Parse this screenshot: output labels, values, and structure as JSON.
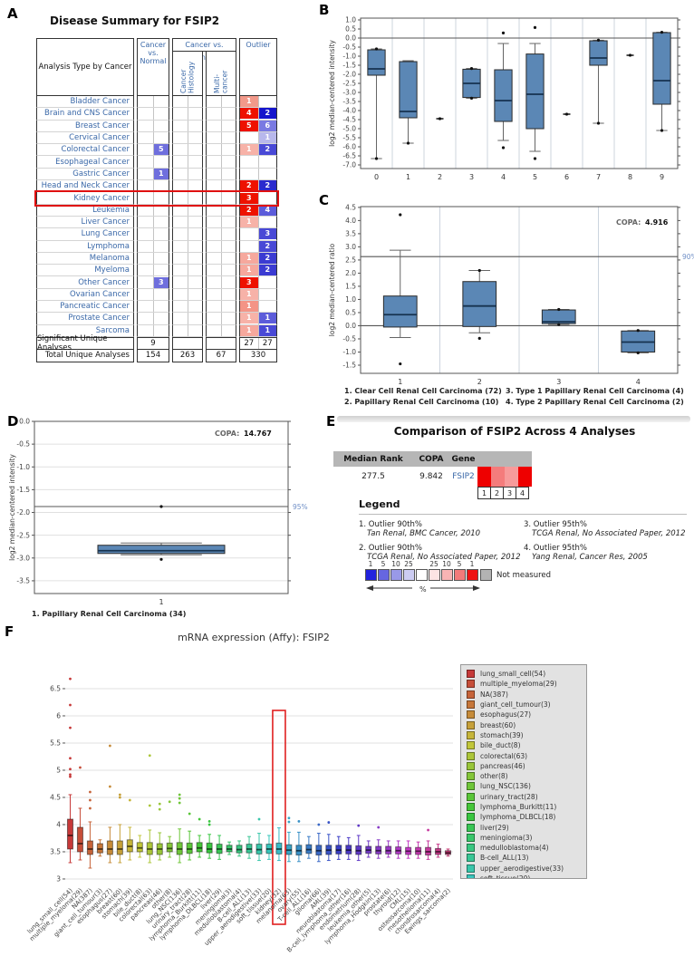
{
  "accent": {
    "box_blue": "#5b87b5",
    "median_navy": "#16324f",
    "ref_label_blue": "#6f8fc6",
    "highlight_red": "#e01010",
    "link_blue": "#3a68a8"
  },
  "panel_a": {
    "label": "A",
    "title": "Disease Summary for FSIP2",
    "headers": {
      "analysis": "Analysis Type by Cancer",
      "cvn": "Cancer vs. Normal",
      "cvc": "Cancer vs. Cancer",
      "hist": "Cancer Histology",
      "multi": "Multi-cancer",
      "outlier": "Outlier"
    },
    "rows": [
      {
        "name": "Bladder Cancer",
        "out1": {
          "v": "1",
          "c": "#f2998a"
        }
      },
      {
        "name": "Brain and CNS Cancer",
        "out1": {
          "v": "4",
          "c": "#ee1100"
        },
        "out2": {
          "v": "2",
          "c": "#1515cc"
        }
      },
      {
        "name": "Breast Cancer",
        "out1": {
          "v": "5",
          "c": "#ee1100"
        },
        "out2": {
          "v": "6",
          "c": "#7a7ae2"
        }
      },
      {
        "name": "Cervical Cancer",
        "out2": {
          "v": "1",
          "c": "#b8b8ec"
        }
      },
      {
        "name": "Colorectal Cancer",
        "cvn": {
          "v": "5",
          "c": "#6f6fdd"
        },
        "out1": {
          "v": "1",
          "c": "#f7b2a8"
        },
        "out2": {
          "v": "2",
          "c": "#4949d6"
        }
      },
      {
        "name": "Esophageal Cancer"
      },
      {
        "name": "Gastric Cancer",
        "cvn": {
          "v": "1",
          "c": "#6f6fdd"
        }
      },
      {
        "name": "Head and Neck Cancer",
        "out1": {
          "v": "2",
          "c": "#ee1100"
        },
        "out2": {
          "v": "2",
          "c": "#2a2ace"
        }
      },
      {
        "name": "Kidney Cancer",
        "highlight": true,
        "out1": {
          "v": "3",
          "c": "#ee1100"
        }
      },
      {
        "name": "Leukemia",
        "out1": {
          "v": "2",
          "c": "#ee1100"
        },
        "out2": {
          "v": "4",
          "c": "#5c5cda"
        }
      },
      {
        "name": "Liver Cancer",
        "out1": {
          "v": "1",
          "c": "#f7b2a8"
        }
      },
      {
        "name": "Lung Cancer",
        "out2": {
          "v": "3",
          "c": "#4949d6"
        }
      },
      {
        "name": "Lymphoma",
        "out2": {
          "v": "2",
          "c": "#4949d6"
        }
      },
      {
        "name": "Melanoma",
        "out1": {
          "v": "1",
          "c": "#f6a89d"
        },
        "out2": {
          "v": "2",
          "c": "#3b3bd2"
        }
      },
      {
        "name": "Myeloma",
        "out1": {
          "v": "1",
          "c": "#f6a89d"
        },
        "out2": {
          "v": "2",
          "c": "#3b3bd2"
        }
      },
      {
        "name": "Other Cancer",
        "cvn": {
          "v": "3",
          "c": "#6f6fdd"
        },
        "out1": {
          "v": "3",
          "c": "#ee1100"
        }
      },
      {
        "name": "Ovarian Cancer",
        "out1": {
          "v": "1",
          "c": "#f7b2a8"
        }
      },
      {
        "name": "Pancreatic Cancer",
        "out1": {
          "v": "1",
          "c": "#f49486"
        }
      },
      {
        "name": "Prostate Cancer",
        "out1": {
          "v": "1",
          "c": "#f7b2a8"
        },
        "out2": {
          "v": "1",
          "c": "#5c5cda"
        }
      },
      {
        "name": "Sarcoma",
        "out1": {
          "v": "1",
          "c": "#f6a89d"
        },
        "out2": {
          "v": "1",
          "c": "#4949d6"
        }
      }
    ],
    "summary_rows": [
      {
        "name": "Significant Unique Analyses",
        "cvn": "9",
        "hist": "",
        "multi": "",
        "out1": "27",
        "out2": "27"
      },
      {
        "name": "Total Unique Analyses",
        "cvn": "154",
        "hist": "263",
        "multi": "67",
        "out": "330"
      }
    ]
  },
  "chart_data": [
    {
      "id": "B",
      "type": "box",
      "panel_label": "B",
      "ylabel": "log2 median-centered intensity",
      "ylim": [
        -7.2,
        1.1
      ],
      "yticks": [
        1.0,
        0.5,
        0.0,
        -0.5,
        -1.0,
        -1.5,
        -2.0,
        -2.5,
        -3.0,
        -3.5,
        -4.0,
        -4.5,
        -5.0,
        -5.5,
        -6.0,
        -6.5,
        -7.0
      ],
      "reflines": [
        {
          "v": 0
        }
      ],
      "categories": [
        "0",
        "1",
        "2",
        "3",
        "4",
        "5",
        "6",
        "7",
        "8",
        "9"
      ],
      "boxes": [
        {
          "box": [
            -6.65,
            -2.05,
            -1.7,
            -0.65,
            -0.6
          ],
          "out": [
            -6.65,
            -0.6
          ]
        },
        {
          "box": [
            -5.8,
            -4.4,
            -4.05,
            -1.3,
            -1.25
          ],
          "out": [
            -5.8
          ]
        },
        {
          "point": -4.45
        },
        {
          "box": [
            -3.32,
            -3.28,
            -2.5,
            -1.72,
            -1.68
          ],
          "out": [
            -3.32,
            -1.68
          ]
        },
        {
          "box": [
            -5.65,
            -4.6,
            -3.45,
            -1.75,
            -0.3
          ],
          "out": [
            0.28,
            -6.05
          ]
        },
        {
          "box": [
            -6.25,
            -5.0,
            -3.1,
            -0.88,
            -0.3
          ],
          "out": [
            0.58,
            -6.65
          ]
        },
        {
          "point": -4.2
        },
        {
          "box": [
            -4.7,
            -1.5,
            -1.1,
            -0.15,
            -0.12
          ],
          "out": [
            -4.7,
            -0.12
          ]
        },
        {
          "point": -0.95
        },
        {
          "box": [
            -5.1,
            -3.65,
            -2.35,
            0.3,
            0.32
          ],
          "out": [
            -5.1,
            0.32
          ]
        }
      ]
    },
    {
      "id": "C",
      "type": "box",
      "panel_label": "C",
      "ylabel": "log2 median-centered ratio",
      "ylim": [
        -1.81,
        4.53
      ],
      "yticks": [
        4.5,
        4.0,
        3.5,
        3.0,
        2.5,
        2.0,
        1.5,
        1.0,
        0.5,
        0.0,
        -0.5,
        -1.0,
        -1.5
      ],
      "reflines": [
        {
          "v": 0
        },
        {
          "v": 2.63,
          "label": "90%"
        }
      ],
      "annotation": {
        "label": "COPA:",
        "value": "4.916"
      },
      "categories": [
        "1",
        "2",
        "3",
        "4"
      ],
      "boxes": [
        {
          "box": [
            -0.45,
            -0.05,
            0.42,
            1.13,
            2.87
          ],
          "out": [
            4.22,
            -1.45
          ]
        },
        {
          "box": [
            -0.27,
            -0.03,
            0.75,
            1.68,
            2.1
          ],
          "out": [
            2.1,
            -0.48
          ]
        },
        {
          "box": [
            0.05,
            0.08,
            0.15,
            0.6,
            0.62
          ],
          "out": [
            0.62,
            0.05
          ]
        },
        {
          "box": [
            -1.03,
            -1.0,
            -0.62,
            -0.2,
            -0.18
          ],
          "out": [
            -0.18,
            -1.03
          ]
        }
      ],
      "footnotes_col1": [
        "1. Clear Cell Renal Cell Carcinoma (72)",
        "2. Papillary Renal Cell Carcinoma (10)"
      ],
      "footnotes_col2": [
        "3. Type 1 Papillary Renal Cell Carcinoma (4)",
        "4. Type 2 Papillary Renal Cell Carcinoma (2)"
      ]
    },
    {
      "id": "D",
      "type": "box",
      "panel_label": "D",
      "ylabel": "log2 median-centered intensity",
      "ylim": [
        -3.78,
        0.0
      ],
      "yticks": [
        0.0,
        -0.5,
        -1.0,
        -1.5,
        -2.0,
        -2.5,
        -3.0,
        -3.5
      ],
      "reflines": [
        {
          "v": -1.87,
          "label": "95%"
        }
      ],
      "annotation": {
        "label": "COPA:",
        "value": "14.767"
      },
      "categories": [
        "1"
      ],
      "boxes": [
        {
          "box": [
            -2.93,
            -2.9,
            -2.84,
            -2.72,
            -2.67
          ],
          "out": [
            -1.87,
            -3.03
          ]
        }
      ],
      "footnote": "1. Papillary Renal Cell Carcinoma (34)"
    },
    {
      "id": "F",
      "type": "box",
      "panel_label": "F",
      "title": "mRNA expression (Affy): FSIP2",
      "ylim": [
        2.933,
        6.833
      ],
      "yticks": [
        3,
        3.5,
        4,
        4.5,
        5,
        5.5,
        6,
        6.5
      ],
      "highlight_index": 21,
      "legend_visible_count": 21,
      "categories": [
        {
          "label": "lung_small_cell(54)",
          "box": [
            3.3,
            3.55,
            3.8,
            4.1,
            4.55
          ],
          "out": [
            4.88,
            4.92,
            5.02,
            5.22,
            5.78,
            6.2,
            6.68
          ]
        },
        {
          "label": "multiple_myeloma(29)",
          "box": [
            3.35,
            3.5,
            3.65,
            3.95,
            4.3
          ],
          "out": [
            5.05
          ]
        },
        {
          "label": "NA(387)",
          "box": [
            3.2,
            3.45,
            3.55,
            3.7,
            4.05
          ],
          "out": [
            4.3,
            4.45,
            4.6
          ]
        },
        {
          "label": "giant_cell_tumour(3)",
          "box": [
            3.42,
            3.48,
            3.55,
            3.65,
            3.72
          ],
          "out": []
        },
        {
          "label": "esophagus(27)",
          "box": [
            3.3,
            3.45,
            3.55,
            3.7,
            3.95
          ],
          "out": [
            4.7,
            5.45
          ]
        },
        {
          "label": "breast(60)",
          "box": [
            3.3,
            3.45,
            3.55,
            3.7,
            4.0
          ],
          "out": [
            4.5,
            4.55
          ]
        },
        {
          "label": "stomach(39)",
          "box": [
            3.35,
            3.5,
            3.6,
            3.72,
            3.95
          ],
          "out": [
            4.45
          ]
        },
        {
          "label": "bile_duct(8)",
          "box": [
            3.4,
            3.5,
            3.57,
            3.67,
            3.8
          ],
          "out": []
        },
        {
          "label": "colorectal(63)",
          "box": [
            3.3,
            3.45,
            3.55,
            3.67,
            3.9
          ],
          "out": [
            4.35,
            5.27
          ]
        },
        {
          "label": "pancreas(46)",
          "box": [
            3.35,
            3.45,
            3.55,
            3.65,
            3.85
          ],
          "out": [
            4.28,
            4.38
          ]
        },
        {
          "label": "other(8)",
          "box": [
            3.4,
            3.5,
            3.56,
            3.66,
            3.78
          ],
          "out": [
            4.42
          ]
        },
        {
          "label": "lung_NSC(136)",
          "box": [
            3.3,
            3.45,
            3.55,
            3.67,
            3.92
          ],
          "out": [
            4.4,
            4.48,
            4.55
          ]
        },
        {
          "label": "urinary_tract(28)",
          "box": [
            3.35,
            3.47,
            3.55,
            3.66,
            3.88
          ],
          "out": [
            4.2
          ]
        },
        {
          "label": "lymphoma_Burkitt(11)",
          "box": [
            3.4,
            3.5,
            3.57,
            3.67,
            3.8
          ],
          "out": [
            4.1
          ]
        },
        {
          "label": "lymphoma_DLBCL(18)",
          "box": [
            3.38,
            3.48,
            3.55,
            3.66,
            3.82
          ],
          "out": [
            4.0,
            4.06
          ]
        },
        {
          "label": "liver(29)",
          "box": [
            3.36,
            3.47,
            3.55,
            3.64,
            3.8
          ],
          "out": []
        },
        {
          "label": "meningioma(3)",
          "box": [
            3.45,
            3.5,
            3.55,
            3.62,
            3.68
          ],
          "out": []
        },
        {
          "label": "medulloblastoma(4)",
          "box": [
            3.42,
            3.48,
            3.54,
            3.62,
            3.7
          ],
          "out": []
        },
        {
          "label": "B-cell_ALL(13)",
          "box": [
            3.38,
            3.48,
            3.55,
            3.64,
            3.78
          ],
          "out": []
        },
        {
          "label": "upper_aerodigestive(33)",
          "box": [
            3.34,
            3.46,
            3.54,
            3.64,
            3.84
          ],
          "out": [
            4.1
          ]
        },
        {
          "label": "soft_tissue(20)",
          "box": [
            3.36,
            3.47,
            3.55,
            3.64,
            3.8
          ],
          "out": []
        },
        {
          "label": "kidney(32)",
          "box": [
            3.34,
            3.46,
            3.55,
            3.66,
            3.94
          ],
          "out": []
        },
        {
          "label": "melanoma(63)",
          "box": [
            3.32,
            3.45,
            3.53,
            3.63,
            3.86
          ],
          "out": [
            4.05,
            4.12
          ]
        },
        {
          "label": "ovary(55)",
          "box": [
            3.32,
            3.44,
            3.52,
            3.62,
            3.86
          ],
          "out": [
            4.06
          ]
        },
        {
          "label": "T-cell_ALL(16)",
          "box": [
            3.38,
            3.47,
            3.54,
            3.63,
            3.78
          ],
          "out": []
        },
        {
          "label": "glioma(66)",
          "box": [
            3.32,
            3.44,
            3.52,
            3.62,
            3.84
          ],
          "out": [
            4.0
          ]
        },
        {
          "label": "AML(39)",
          "box": [
            3.34,
            3.45,
            3.53,
            3.62,
            3.82
          ],
          "out": [
            4.04
          ]
        },
        {
          "label": "neuroblastoma(17)",
          "box": [
            3.36,
            3.46,
            3.53,
            3.62,
            3.78
          ],
          "out": []
        },
        {
          "label": "B-cell_lymphoma_other(16)",
          "box": [
            3.36,
            3.46,
            3.53,
            3.62,
            3.76
          ],
          "out": []
        },
        {
          "label": "endometrium(28)",
          "box": [
            3.34,
            3.45,
            3.52,
            3.61,
            3.8
          ],
          "out": [
            3.98
          ]
        },
        {
          "label": "leukemia_other(5)",
          "box": [
            3.4,
            3.47,
            3.53,
            3.6,
            3.7
          ],
          "out": []
        },
        {
          "label": "lymphoma_Hodgkin(13)",
          "box": [
            3.38,
            3.46,
            3.52,
            3.6,
            3.72
          ],
          "out": [
            3.95
          ]
        },
        {
          "label": "prostate(6)",
          "box": [
            3.4,
            3.46,
            3.52,
            3.6,
            3.7
          ],
          "out": []
        },
        {
          "label": "thyroid(12)",
          "box": [
            3.38,
            3.46,
            3.52,
            3.59,
            3.7
          ],
          "out": []
        },
        {
          "label": "CML(15)",
          "box": [
            3.38,
            3.45,
            3.51,
            3.58,
            3.7
          ],
          "out": []
        },
        {
          "label": "osteosarcoma(10)",
          "box": [
            3.38,
            3.45,
            3.51,
            3.58,
            3.68
          ],
          "out": []
        },
        {
          "label": "mesothelioma(11)",
          "box": [
            3.36,
            3.44,
            3.5,
            3.58,
            3.7
          ],
          "out": [
            3.9
          ]
        },
        {
          "label": "chondrosarcoma(4)",
          "box": [
            3.4,
            3.45,
            3.5,
            3.56,
            3.64
          ],
          "out": []
        },
        {
          "label": "Ewings_sarcoma(2)",
          "box": [
            3.42,
            3.45,
            3.48,
            3.52,
            3.55
          ],
          "out": []
        }
      ]
    }
  ],
  "panel_e": {
    "label": "E",
    "title": "Comparison of FSIP2 Across 4 Analyses",
    "table": {
      "headers": [
        "Median Rank",
        "COPA",
        "Gene"
      ],
      "median_rank": "277.5",
      "copa": "9.842",
      "gene": "FSIP2"
    },
    "heatmap": {
      "cell_colors": [
        "#ee0000",
        "#f47c7c",
        "#f79b9b",
        "#ee0000"
      ],
      "cell_numbers": [
        "1",
        "2",
        "3",
        "4"
      ]
    },
    "legend_title": "Legend",
    "legend_entries": [
      {
        "line1": "1. Outlier 90th%",
        "line2": "Tan Renal, BMC Cancer, 2010"
      },
      {
        "line1": "2. Outlier 90th%",
        "line2": "TCGA Renal, No Associated Paper, 2012"
      },
      {
        "line1": "3. Outlier 95th%",
        "line2": "TCGA Renal, No Associated Paper, 2012"
      },
      {
        "line1": "4. Outlier 95th%",
        "line2": "Yang Renal, Cancer Res, 2005"
      }
    ],
    "scale": {
      "labels": [
        "1",
        "5",
        "10",
        "25",
        "",
        "25",
        "10",
        "5",
        "1"
      ],
      "colors": [
        "#2222dd",
        "#6666e0",
        "#9999e8",
        "#ccccf2",
        "#ffffff",
        "#fce4e4",
        "#f8b4b4",
        "#f27a7a",
        "#ee1111"
      ],
      "percent": "%",
      "not_measured_label": "Not measured",
      "not_measured_color": "#b3b3b3"
    }
  }
}
